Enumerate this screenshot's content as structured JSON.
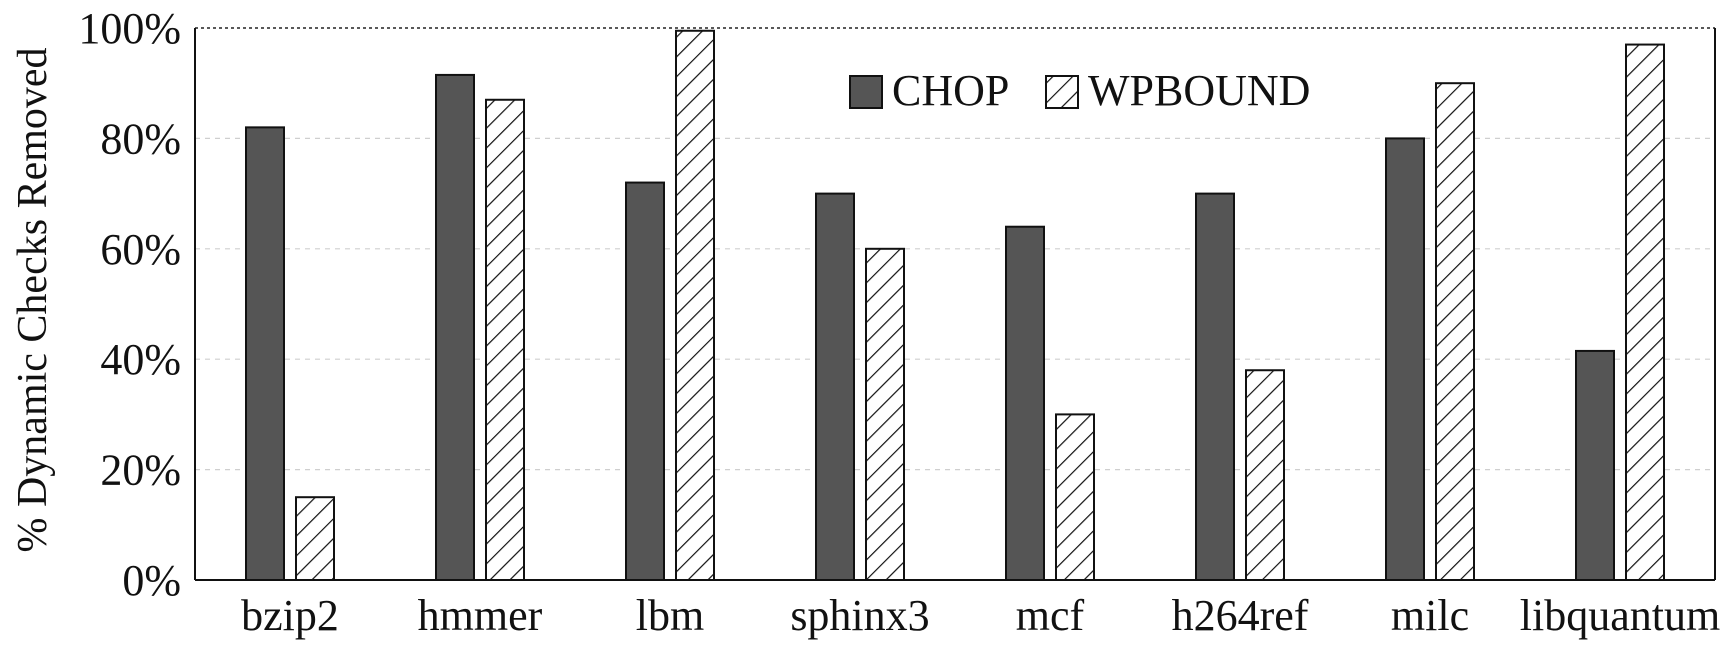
{
  "chart_data": {
    "type": "bar",
    "title": "",
    "xlabel": "",
    "ylabel": "% Dynamic Checks Removed",
    "ylim": [
      0,
      100
    ],
    "y_ticks": [
      "0%",
      "20%",
      "40%",
      "60%",
      "80%",
      "100%"
    ],
    "grid": true,
    "legend_position": "top-center",
    "categories": [
      "bzip2",
      "hmmer",
      "lbm",
      "sphinx3",
      "mcf",
      "h264ref",
      "milc",
      "libquantum"
    ],
    "series": [
      {
        "name": "CHOP",
        "values": [
          82,
          91.5,
          72,
          70,
          64,
          70,
          80,
          41.5
        ],
        "color": "#555555",
        "pattern": "solid"
      },
      {
        "name": "WPBOUND",
        "values": [
          15,
          87,
          99.5,
          60,
          30,
          38,
          90,
          97
        ],
        "color": "#ffffff",
        "pattern": "hatched"
      }
    ]
  }
}
